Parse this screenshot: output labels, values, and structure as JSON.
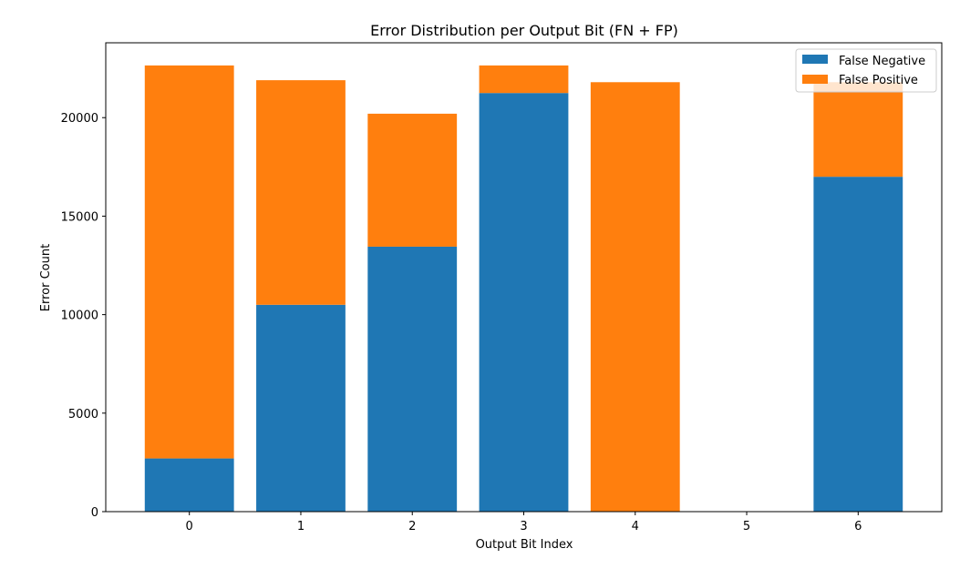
{
  "chart_data": {
    "type": "bar",
    "stacked": true,
    "title": "Error Distribution per Output Bit (FN + FP)",
    "xlabel": "Output Bit Index",
    "ylabel": "Error Count",
    "categories": [
      "0",
      "1",
      "2",
      "3",
      "4",
      "5",
      "6"
    ],
    "series": [
      {
        "name": "False Negative",
        "color": "#1f77b4",
        "values": [
          2700,
          10500,
          13450,
          21250,
          0,
          0,
          17000
        ]
      },
      {
        "name": "False Positive",
        "color": "#ff7f0e",
        "values": [
          19950,
          11400,
          6750,
          1400,
          21800,
          0,
          4800
        ]
      }
    ],
    "ylim": [
      0,
      23800
    ],
    "yticks": [
      0,
      5000,
      10000,
      15000,
      20000
    ],
    "grid": false,
    "legend_position": "top-right"
  }
}
